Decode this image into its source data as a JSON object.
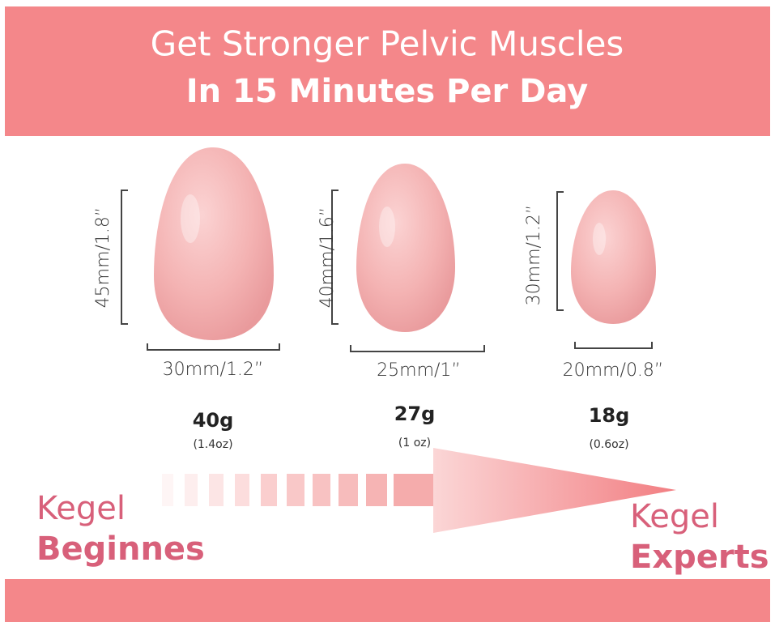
{
  "header": {
    "line1": "Get Stronger Pelvic Muscles",
    "line2": "In 15 Minutes Per Day"
  },
  "eggs": [
    {
      "height": "45mm/1.8”",
      "width": "30mm/1.2”",
      "weight": "40g",
      "ounces": "(1.4oz)"
    },
    {
      "height": "40mm/1.6”",
      "width": "25mm/1”",
      "weight": "27g",
      "ounces": "(1 oz)"
    },
    {
      "height": "30mm/1.2”",
      "width": "20mm/0.8”",
      "weight": "18g",
      "ounces": "(0.6oz)"
    }
  ],
  "progress": {
    "start": {
      "line1": "Kegel",
      "line2": "Beginnes"
    },
    "end": {
      "line1": "Kegel",
      "line2": "Experts"
    }
  }
}
